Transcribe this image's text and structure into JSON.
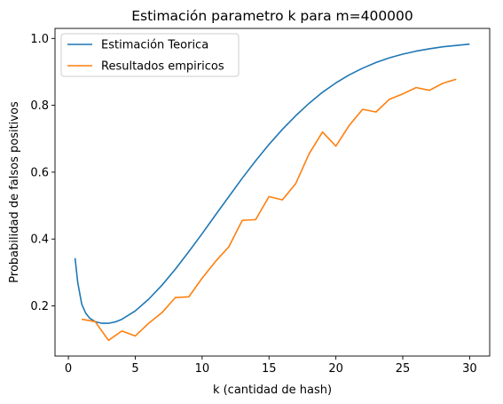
{
  "chart_data": {
    "type": "line",
    "title": "Estimación parametro k para m=400000",
    "xlabel": "k (cantidad de hash)",
    "ylabel": "Probabilidad de falsos positivos",
    "xlim": [
      -1,
      31.5
    ],
    "ylim": [
      0.05,
      1.03
    ],
    "xticks": [
      0,
      5,
      10,
      15,
      20,
      25,
      30
    ],
    "yticks": [
      0.2,
      0.4,
      0.6,
      0.8,
      1.0
    ],
    "xtick_labels": [
      "0",
      "5",
      "10",
      "15",
      "20",
      "25",
      "30"
    ],
    "ytick_labels": [
      "0.2",
      "0.4",
      "0.6",
      "0.8",
      "1.0"
    ],
    "grid": false,
    "legend_position": "top-left",
    "series": [
      {
        "name": "Estimación Teorica",
        "color": "#1f77b4",
        "x": [
          0.5,
          0.7,
          1.0,
          1.3,
          1.6,
          2.0,
          2.5,
          3.0,
          3.5,
          4.0,
          5.0,
          6.0,
          7.0,
          8.0,
          9.0,
          10.0,
          11.0,
          12.0,
          13.0,
          14.0,
          15.0,
          16.0,
          17.0,
          18.0,
          19.0,
          20.0,
          21.0,
          22.0,
          23.0,
          24.0,
          25.0,
          26.0,
          27.0,
          28.0,
          29.0,
          30.0
        ],
        "y": [
          0.343,
          0.27,
          0.205,
          0.178,
          0.163,
          0.153,
          0.148,
          0.148,
          0.152,
          0.16,
          0.185,
          0.22,
          0.262,
          0.31,
          0.362,
          0.416,
          0.472,
          0.527,
          0.582,
          0.634,
          0.683,
          0.728,
          0.769,
          0.806,
          0.839,
          0.867,
          0.891,
          0.911,
          0.928,
          0.942,
          0.953,
          0.962,
          0.969,
          0.975,
          0.979,
          0.983
        ]
      },
      {
        "name": "Resultados empiricos",
        "color": "#ff7f0e",
        "x": [
          1,
          2,
          3,
          4,
          5,
          6,
          7,
          8,
          9,
          10,
          11,
          12,
          13,
          14,
          15,
          16,
          17,
          18,
          19,
          20,
          21,
          22,
          23,
          24,
          25,
          26,
          27,
          28,
          29
        ],
        "y": [
          0.16,
          0.153,
          0.097,
          0.125,
          0.11,
          0.148,
          0.18,
          0.225,
          0.227,
          0.283,
          0.333,
          0.377,
          0.456,
          0.458,
          0.527,
          0.517,
          0.566,
          0.655,
          0.72,
          0.678,
          0.74,
          0.788,
          0.78,
          0.818,
          0.834,
          0.853,
          0.845,
          0.866,
          0.878
        ]
      }
    ]
  }
}
